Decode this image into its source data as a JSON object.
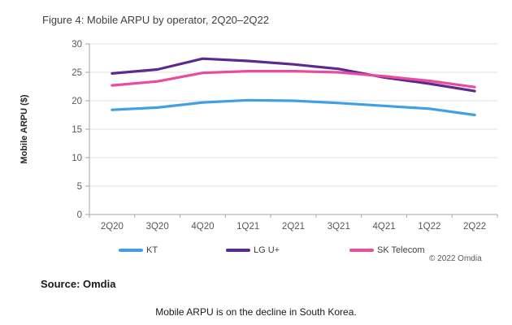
{
  "figure": {
    "title": "Figure 4: Mobile ARPU by operator, 2Q20–2Q22",
    "source": "Source: Omdia",
    "caption": "Mobile ARPU is on the decline in South Korea.",
    "copyright": "© 2022 Omdia"
  },
  "colors": {
    "grid": "#e3e3e3",
    "axis": "#a6a6a6",
    "tick_text": "#595959",
    "title_text": "#3f3f3f"
  },
  "chart_data": {
    "type": "line",
    "title": "Figure 4: Mobile ARPU by operator, 2Q20–2Q22",
    "categories": [
      "2Q20",
      "3Q20",
      "4Q20",
      "1Q21",
      "2Q21",
      "3Q21",
      "4Q21",
      "1Q22",
      "2Q22"
    ],
    "series": [
      {
        "name": "KT",
        "color": "#41a0e5",
        "values": [
          18.4,
          18.8,
          19.7,
          20.1,
          20.0,
          19.6,
          19.1,
          18.6,
          17.5
        ]
      },
      {
        "name": "LG U+",
        "color": "#5b2a90",
        "values": [
          24.8,
          25.5,
          27.4,
          27.0,
          26.4,
          25.6,
          24.1,
          23.0,
          21.7
        ]
      },
      {
        "name": "SK Telecom",
        "color": "#ea4c9c",
        "values": [
          22.7,
          23.4,
          24.9,
          25.2,
          25.2,
          25.0,
          24.3,
          23.5,
          22.4
        ]
      }
    ],
    "xlabel": "",
    "ylabel": "Mobile ARPU ($)",
    "ylim": [
      0,
      30
    ],
    "ytick_step": 5,
    "grid": true,
    "legend_position": "bottom"
  }
}
